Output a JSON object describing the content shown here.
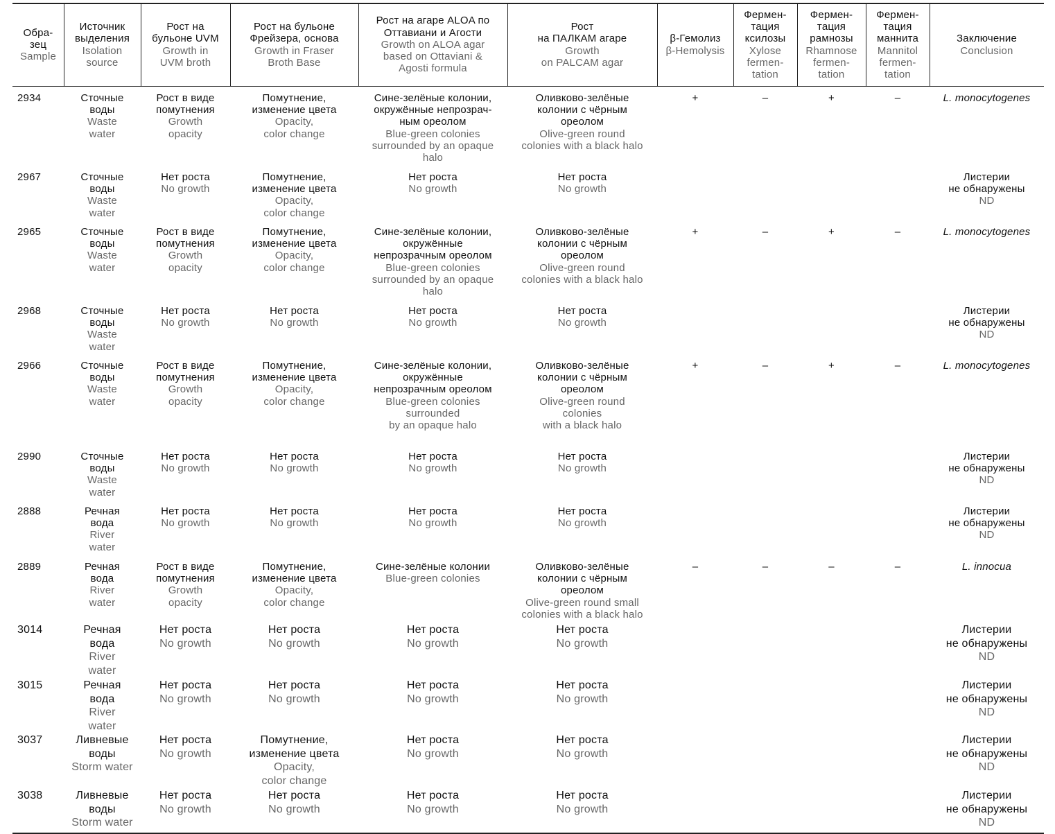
{
  "header": [
    {
      "ru": "Обра-\nзец",
      "en": "Sample"
    },
    {
      "ru": "Источник\nвыделения",
      "en": "Isolation\nsource"
    },
    {
      "ru": "Рост на\nбульоне UVM",
      "en": "Growth in\nUVM broth"
    },
    {
      "ru": "Рост на бульоне\nФрейзера, основа",
      "en": "Growth in Fraser\nBroth Base"
    },
    {
      "ru": "Рост на агаре ALOA по\nОттавиани и Агости",
      "en": "Growth on ALOA agar\nbased on Ottaviani &\nAgosti formula"
    },
    {
      "ru": "Рост\nна ПАЛКАМ агаре",
      "en": "Growth\non PALCAM agar"
    },
    {
      "ru": "β-Гемолиз",
      "en": "β-Hemolysis"
    },
    {
      "ru": "Фермен-\nтация\nксилозы",
      "en": "Xylose\nfermen-\ntation"
    },
    {
      "ru": "Фермен-\nтация\nрамнозы",
      "en": "Rhamnose\nfermen-\ntation"
    },
    {
      "ru": "Фермен-\nтация\nманнита",
      "en": "Mannitol\nfermen-\ntation"
    },
    {
      "ru": "Заключение",
      "en": "Conclusion"
    }
  ],
  "rows": [
    {
      "cells": [
        {
          "ru": "2934"
        },
        {
          "ru": "Сточные\nводы",
          "en": "Waste\nwater"
        },
        {
          "ru": "Рост в виде\nпомутнения",
          "en": "Growth\nopacity"
        },
        {
          "ru": "Помутнение,\nизменение цвета",
          "en": "Opacity,\ncolor change"
        },
        {
          "ru": "Сине-зелёные колонии,\nокружённые непрозрач-\nным ореолом",
          "en": "Blue-green colonies\nsurrounded by an opaque\nhalo"
        },
        {
          "ru": "Оливково-зелёные\nколонии с чёрным\nореолом",
          "en": "Olive-green round\ncolonies with a black halo"
        },
        {
          "ru": "+"
        },
        {
          "ru": "–"
        },
        {
          "ru": "+"
        },
        {
          "ru": "–"
        },
        {
          "ru": "L. monocytogenes",
          "italic": true
        }
      ]
    },
    {
      "cells": [
        {
          "ru": "2967"
        },
        {
          "ru": "Сточные\nводы",
          "en": "Waste\nwater"
        },
        {
          "ru": "Нет роста",
          "en": "No growth"
        },
        {
          "ru": "Помутнение,\nизменение цвета",
          "en": "Opacity,\ncolor change"
        },
        {
          "ru": "Нет роста",
          "en": "No growth"
        },
        {
          "ru": "Нет роста",
          "en": "No growth"
        },
        {},
        {},
        {},
        {},
        {
          "ru": "Листерии\nне обнаружены",
          "en": "ND"
        }
      ]
    },
    {
      "cells": [
        {
          "ru": "2965"
        },
        {
          "ru": "Сточные\nводы",
          "en": "Waste\nwater"
        },
        {
          "ru": "Рост в виде\nпомутнения",
          "en": "Growth\nopacity"
        },
        {
          "ru": "Помутнение,\nизменение цвета",
          "en": "Opacity,\ncolor change"
        },
        {
          "ru": "Сине-зелёные колонии,\nокружённые\nнепрозрачным ореолом",
          "en": "Blue-green colonies\nsurrounded by an opaque\nhalo"
        },
        {
          "ru": "Оливково-зелёные\nколонии с чёрным\nореолом",
          "en": "Olive-green round\ncolonies with a black halo"
        },
        {
          "ru": "+"
        },
        {
          "ru": "–"
        },
        {
          "ru": "+"
        },
        {
          "ru": "–"
        },
        {
          "ru": "L. monocytogenes",
          "italic": true
        }
      ]
    },
    {
      "cells": [
        {
          "ru": "2968"
        },
        {
          "ru": "Сточные\nводы",
          "en": "Waste\nwater"
        },
        {
          "ru": "Нет роста",
          "en": "No growth"
        },
        {
          "ru": "Нет роста",
          "en": "No growth"
        },
        {
          "ru": "Нет роста",
          "en": "No growth"
        },
        {
          "ru": "Нет роста",
          "en": "No growth"
        },
        {},
        {},
        {},
        {},
        {
          "ru": "Листерии\nне обнаружены",
          "en": "ND"
        }
      ]
    },
    {
      "cells": [
        {
          "ru": "2966"
        },
        {
          "ru": "Сточные\nводы",
          "en": "Waste\nwater"
        },
        {
          "ru": "Рост в виде\nпомутнения",
          "en": "Growth\nopacity"
        },
        {
          "ru": "Помутнение,\nизменение цвета",
          "en": "Opacity,\ncolor change"
        },
        {
          "ru": "Сине-зелёные колонии,\nокружённые\nнепрозрачным ореолом",
          "en": "Blue-green colonies\nsurrounded\nby an opaque halo"
        },
        {
          "ru": "Оливково-зелёные\nколонии с чёрным\nореолом",
          "en": "Olive-green round\ncolonies\nwith a black halo"
        },
        {
          "ru": "+"
        },
        {
          "ru": "–"
        },
        {
          "ru": "+"
        },
        {
          "ru": "–"
        },
        {
          "ru": "L. monocytogenes",
          "italic": true
        }
      ]
    },
    {
      "cells": [
        {
          "ru": "2990"
        },
        {
          "ru": "Сточные\nводы",
          "en": "Waste\nwater"
        },
        {
          "ru": "Нет роста",
          "en": "No growth"
        },
        {
          "ru": "Нет роста",
          "en": "No growth"
        },
        {
          "ru": "Нет роста",
          "en": "No growth"
        },
        {
          "ru": "Нет роста",
          "en": "No growth"
        },
        {},
        {},
        {},
        {},
        {
          "ru": "Листерии\nне обнаружены",
          "en": "ND"
        }
      ]
    },
    {
      "cells": [
        {
          "ru": "2888"
        },
        {
          "ru": "Речная\nвода",
          "en": "River\nwater"
        },
        {
          "ru": "Нет роста",
          "en": "No growth"
        },
        {
          "ru": "Нет роста",
          "en": "No growth"
        },
        {
          "ru": "Нет роста",
          "en": "No growth"
        },
        {
          "ru": "Нет роста",
          "en": "No growth"
        },
        {},
        {},
        {},
        {},
        {
          "ru": "Листерии\nне обнаружены",
          "en": "ND"
        }
      ]
    },
    {
      "cells": [
        {
          "ru": "2889"
        },
        {
          "ru": "Речная\nвода",
          "en": "River\nwater"
        },
        {
          "ru": "Рост в виде\nпомутнения",
          "en": "Growth\nopacity"
        },
        {
          "ru": "Помутнение,\nизменение цвета",
          "en": "Opacity,\ncolor change"
        },
        {
          "ru": "Сине-зелёные колонии",
          "en": "Blue-green colonies"
        },
        {
          "ru": "Оливково-зелёные\nколонии с чёрным\nореолом",
          "en": "Olive-green round small\ncolonies with a black halo"
        },
        {
          "ru": "–"
        },
        {
          "ru": "–"
        },
        {
          "ru": "–"
        },
        {
          "ru": "–"
        },
        {
          "ru": "L. innocua",
          "italic": true
        }
      ]
    },
    {
      "cells": [
        {
          "ru": "3014"
        },
        {
          "ru": "Речная\nвода",
          "en": "River\nwater"
        },
        {
          "ru": "Нет роста",
          "en": "No growth"
        },
        {
          "ru": "Нет роста",
          "en": "No growth"
        },
        {
          "ru": "Нет роста",
          "en": "No growth"
        },
        {
          "ru": "Нет роста",
          "en": "No growth"
        },
        {},
        {},
        {},
        {},
        {
          "ru": "Листерии\nне обнаружены",
          "en": "ND"
        }
      ]
    },
    {
      "cells": [
        {
          "ru": "3015"
        },
        {
          "ru": "Речная\nвода",
          "en": "River\nwater"
        },
        {
          "ru": "Нет роста",
          "en": "No growth"
        },
        {
          "ru": "Нет роста",
          "en": "No growth"
        },
        {
          "ru": "Нет роста",
          "en": "No growth"
        },
        {
          "ru": "Нет роста",
          "en": "No growth"
        },
        {},
        {},
        {},
        {},
        {
          "ru": "Листерии\nне обнаружены",
          "en": "ND"
        }
      ]
    },
    {
      "cells": [
        {
          "ru": "3037"
        },
        {
          "ru": "Ливневые\nводы",
          "en": "Storm water"
        },
        {
          "ru": "Нет роста",
          "en": "No growth"
        },
        {
          "ru": "Помутнение,\nизменение цвета",
          "en": "Opacity,\ncolor change"
        },
        {
          "ru": "Нет роста",
          "en": "No growth"
        },
        {
          "ru": "Нет роста",
          "en": "No growth"
        },
        {},
        {},
        {},
        {},
        {
          "ru": "Листерии\nне обнаружены",
          "en": "ND"
        }
      ]
    },
    {
      "cells": [
        {
          "ru": "3038"
        },
        {
          "ru": "Ливневые\nводы",
          "en": "Storm water"
        },
        {
          "ru": "Нет роста",
          "en": "No growth"
        },
        {
          "ru": "Нет роста",
          "en": "No growth"
        },
        {
          "ru": "Нет роста",
          "en": "No growth"
        },
        {
          "ru": "Нет роста",
          "en": "No growth"
        },
        {},
        {},
        {},
        {},
        {
          "ru": "Листерии\nне обнаружены",
          "en": "ND"
        }
      ]
    }
  ]
}
